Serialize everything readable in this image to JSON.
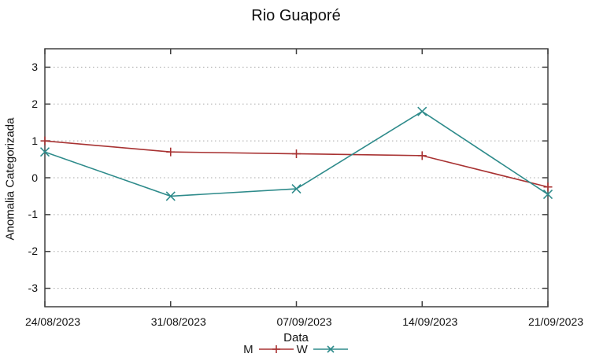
{
  "chart_data": {
    "type": "line",
    "title": "Rio Guaporé",
    "xlabel": "Data",
    "ylabel": "Anomalia Categorizada",
    "categories": [
      "24/08/2023",
      "31/08/2023",
      "07/09/2023",
      "14/09/2023",
      "21/09/2023"
    ],
    "series": [
      {
        "name": "M",
        "color": "#a83232",
        "marker": "plus",
        "values": [
          1.0,
          0.7,
          0.65,
          0.6,
          -0.25
        ]
      },
      {
        "name": "W",
        "color": "#2e8b8b",
        "marker": "cross",
        "values": [
          0.7,
          -0.5,
          -0.3,
          1.8,
          -0.45
        ]
      }
    ],
    "ylim": [
      -3.5,
      3.5
    ],
    "y_ticks": [
      3,
      2,
      1,
      0,
      -1,
      -2,
      -3
    ],
    "grid": true,
    "grid_style": "dotted",
    "legend_position": "bottom-center",
    "colors": {
      "border": "#404040",
      "grid": "#a8a8a8",
      "text": "#111111",
      "background": "#ffffff"
    }
  }
}
